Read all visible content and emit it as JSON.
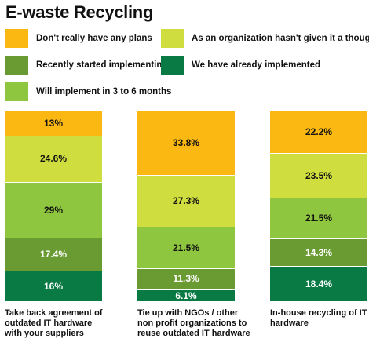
{
  "chart_data": {
    "type": "bar",
    "stacked": true,
    "title": "E-waste Recycling",
    "categories": [
      "Take back agreement of outdated IT hardware with your suppliers",
      "Tie up with NGOs / other non profit organizations to reuse outdated IT hardware",
      "In-house recycling of IT hardware"
    ],
    "category_lines": [
      [
        "Take back agreement of",
        "outdated IT hardware",
        "with your suppliers"
      ],
      [
        "Tie up with NGOs / other",
        "non profit organizations to",
        "reuse outdated IT hardware"
      ],
      [
        "In-house recycling of IT",
        "hardware"
      ]
    ],
    "series": [
      {
        "name": "We have already implemented",
        "color": "#0a7a45",
        "values": [
          16,
          6.1,
          18.4
        ],
        "labels": [
          "16%",
          "6.1%",
          "18.4%"
        ],
        "label_color": "light"
      },
      {
        "name": "Recently started implementing",
        "color": "#6a9a32",
        "values": [
          17.4,
          11.3,
          14.3
        ],
        "labels": [
          "17.4%",
          "11.3%",
          "14.3%"
        ],
        "label_color": "light"
      },
      {
        "name": "Will implement in 3 to 6 months",
        "color": "#8ec63f",
        "values": [
          29,
          21.5,
          21.5
        ],
        "labels": [
          "29%",
          "21.5%",
          "21.5%"
        ],
        "label_color": "dark"
      },
      {
        "name": "As an organization hasn't given it a thought",
        "color": "#cfdd3e",
        "values": [
          24.6,
          27.3,
          23.5
        ],
        "labels": [
          "24.6%",
          "27.3%",
          "23.5%"
        ],
        "label_color": "dark"
      },
      {
        "name": "Don't really have any plans",
        "color": "#fbb812",
        "values": [
          13,
          33.8,
          22.2
        ],
        "labels": [
          "13%",
          "33.8%",
          "22.2%"
        ],
        "label_color": "dark"
      }
    ],
    "stack_order": "bottom-to-top",
    "legend_position": "top",
    "grid": false,
    "xlabel": "",
    "ylabel": ""
  },
  "legend": [
    {
      "label": "Don't really have any plans",
      "color": "#fbb812"
    },
    {
      "label": "As an organization hasn't given it a thought",
      "color": "#cfdd3e"
    },
    {
      "label": "Recently started implementing",
      "color": "#6a9a32"
    },
    {
      "label": "We have already implemented",
      "color": "#0a7a45"
    },
    {
      "label": "Will implement in 3 to 6 months",
      "color": "#8ec63f"
    }
  ]
}
